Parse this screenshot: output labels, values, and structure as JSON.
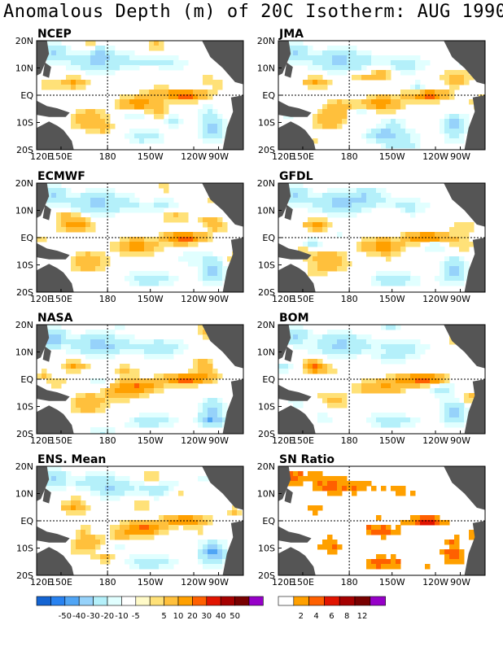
{
  "title": "Anomalous Depth (m) of 20C Isotherm: AUG 1990",
  "lat_labels": [
    "20N",
    "10N",
    "EQ",
    "10S",
    "20S"
  ],
  "lon_labels": [
    "120E",
    "150E",
    "180",
    "150W",
    "120W",
    "90W"
  ],
  "panels": [
    {
      "label": "NCEP",
      "type": "anomaly",
      "seed": 11
    },
    {
      "label": "JMA",
      "type": "anomaly",
      "seed": 23
    },
    {
      "label": "ECMWF",
      "type": "anomaly",
      "seed": 37
    },
    {
      "label": "GFDL",
      "type": "anomaly",
      "seed": 41
    },
    {
      "label": "NASA",
      "type": "anomaly",
      "seed": 53
    },
    {
      "label": "BOM",
      "type": "anomaly",
      "seed": 67
    },
    {
      "label": "ENS. Mean",
      "type": "anomaly",
      "seed": 79
    },
    {
      "label": "SN Ratio",
      "type": "snratio",
      "seed": 97
    }
  ],
  "anomaly_scale": {
    "labels": [
      "-50",
      "-40",
      "-30",
      "-20",
      "-10",
      "-5",
      "5",
      "10",
      "20",
      "30",
      "40",
      "50"
    ],
    "colors": [
      "#1464d2",
      "#2882f0",
      "#50a5f5",
      "#96d2fa",
      "#b4f0fa",
      "#e1ffff",
      "#ffffff",
      "#fffac8",
      "#ffe178",
      "#ffc03c",
      "#ffa000",
      "#ff6000",
      "#e11400",
      "#a50000",
      "#780000",
      "#9600c8"
    ]
  },
  "sn_scale": {
    "labels": [
      "2",
      "4",
      "6",
      "8",
      "12"
    ],
    "colors": [
      "#ffffff",
      "#ffa000",
      "#ff6000",
      "#e11400",
      "#a50000",
      "#780000",
      "#9600c8"
    ]
  },
  "land_color": "#555555"
}
